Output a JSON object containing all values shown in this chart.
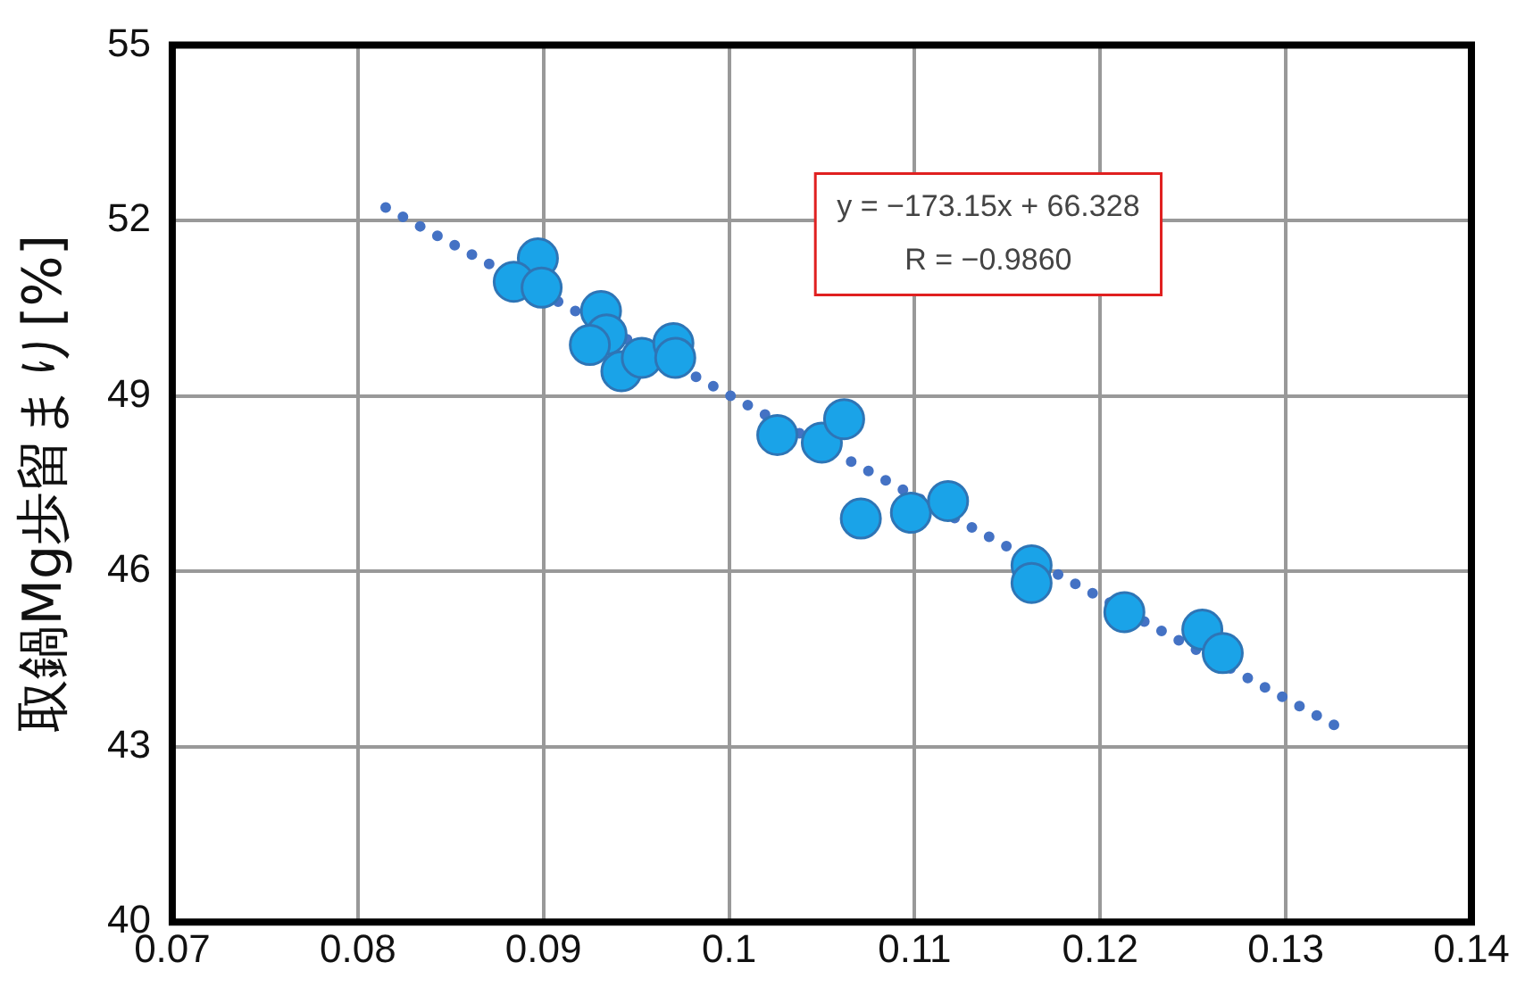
{
  "chart_data": {
    "type": "scatter",
    "ylabel": "取鍋Mg歩留まり[%]",
    "xlim": [
      0.07,
      0.14
    ],
    "xticks": [
      0.07,
      0.08,
      0.09,
      0.1,
      0.11,
      0.12,
      0.13,
      0.14
    ],
    "ylim": [
      40,
      55
    ],
    "yticks": [
      40,
      43,
      46,
      49,
      52,
      55
    ],
    "grid": true,
    "legend": false,
    "series": [
      {
        "marker": "circle",
        "color": "#1aa3e8",
        "x": [
          0.0897,
          0.0884,
          0.0899,
          0.0931,
          0.0934,
          0.0925,
          0.0942,
          0.0953,
          0.097,
          0.0971,
          0.1026,
          0.105,
          0.1062,
          0.1071,
          0.1098,
          0.1118,
          0.1163,
          0.1163,
          0.1213,
          0.1255,
          0.1266
        ],
        "values": [
          51.35,
          50.95,
          50.85,
          50.45,
          50.05,
          49.87,
          49.42,
          49.65,
          49.9,
          49.65,
          48.33,
          48.2,
          48.6,
          46.9,
          47.0,
          47.2,
          46.1,
          45.8,
          45.3,
          45.0,
          44.6
        ]
      },
      {
        "type": "line",
        "marker": "none",
        "color": "#4472c4",
        "line_style": "dotted",
        "x": [
          0.0815,
          0.133
        ],
        "values": [
          52.22,
          43.3
        ]
      }
    ],
    "annotations": [
      "y = −173.15x + 66.328",
      "R = −0.9860"
    ]
  }
}
